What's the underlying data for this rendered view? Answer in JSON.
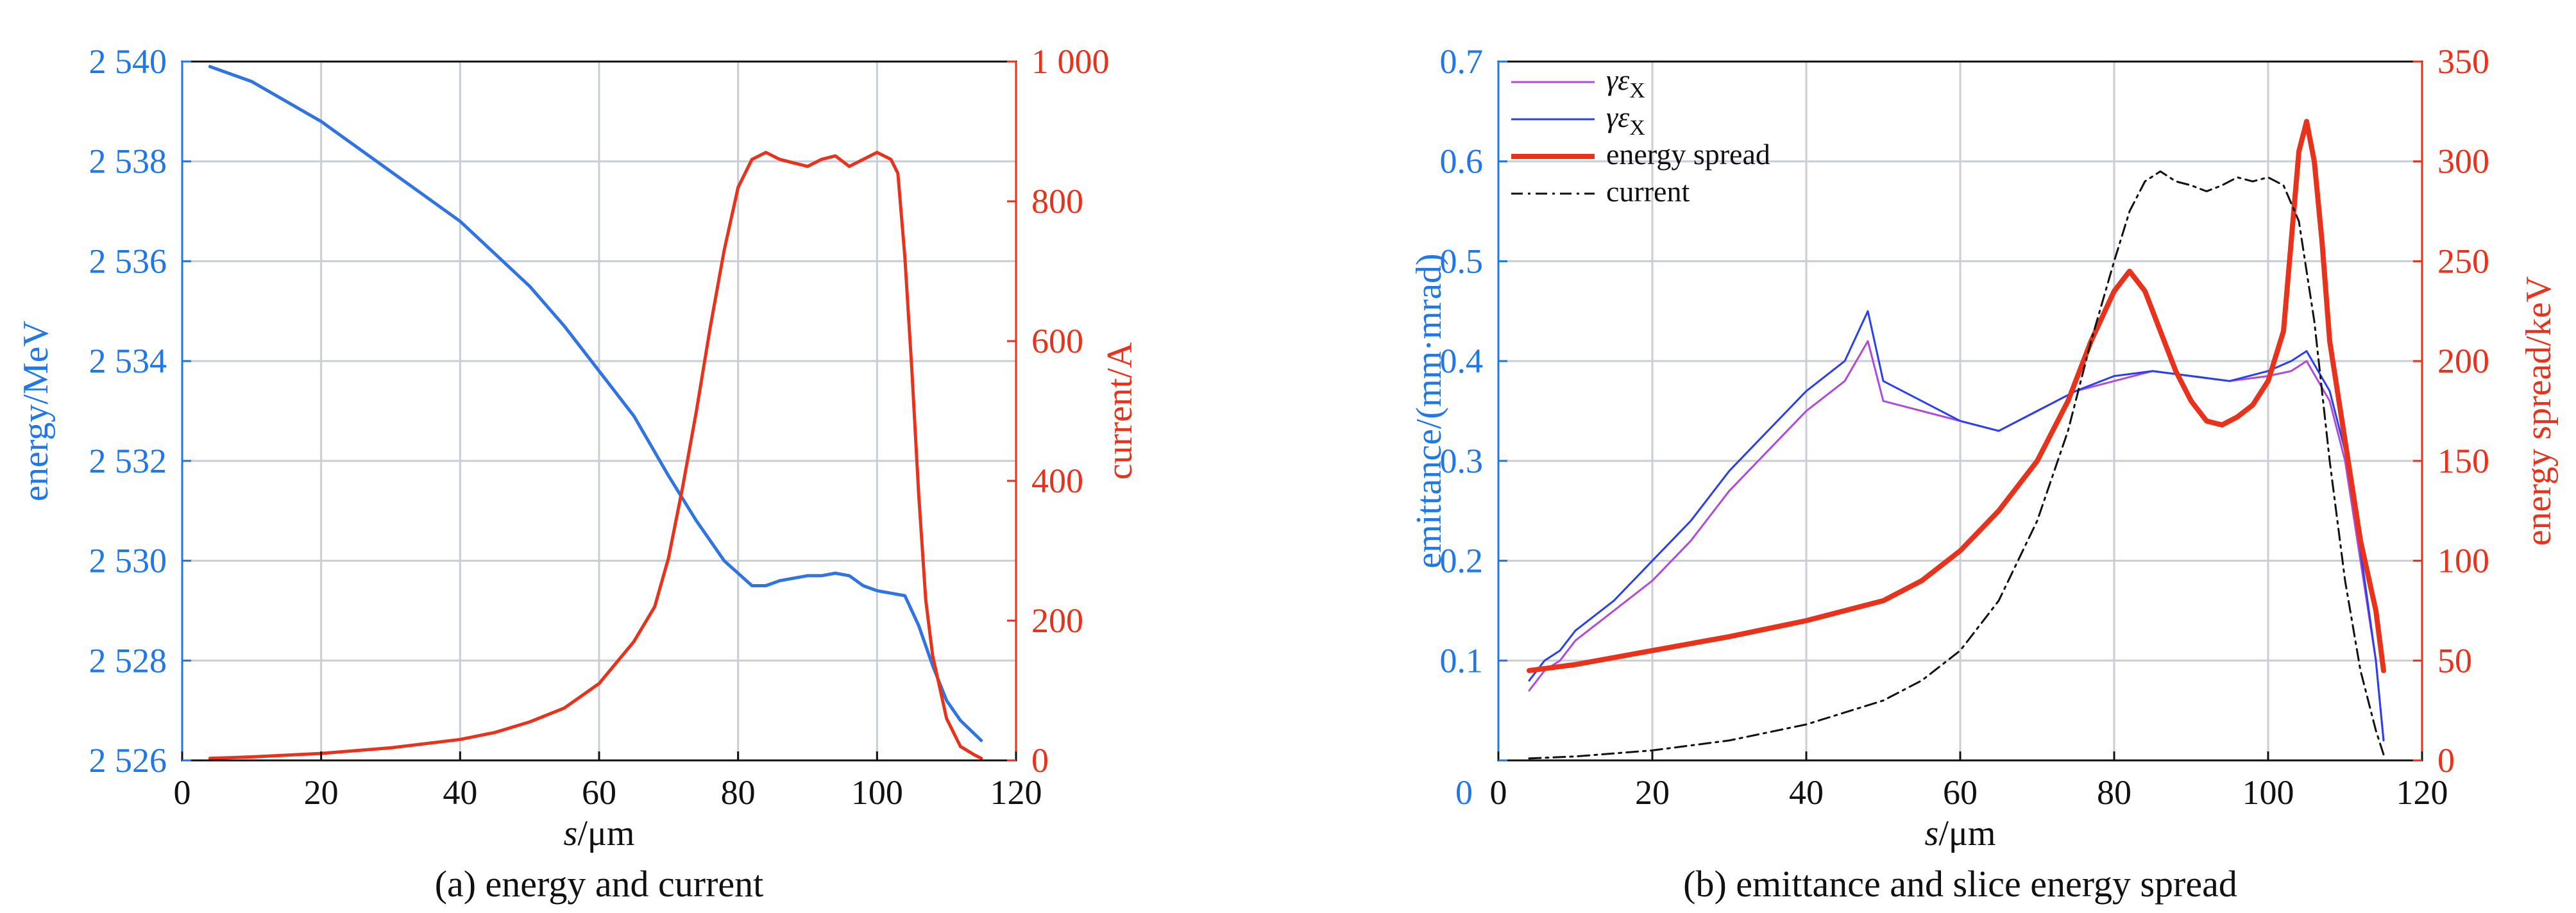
{
  "chart_data": [
    {
      "type": "line",
      "caption": "(a) energy and current",
      "xlabel_italic": "s",
      "xlabel_unit": "/μm",
      "xlim": [
        0,
        120
      ],
      "x_ticks": [
        "0",
        "20",
        "40",
        "60",
        "80",
        "100",
        "120"
      ],
      "y_left": {
        "label": "energy/MeV",
        "lim": [
          2526,
          2540
        ],
        "ticks": [
          "2 526",
          "2 528",
          "2 530",
          "2 532",
          "2 534",
          "2 536",
          "2 538",
          "2 540"
        ],
        "color": "#1f77e8"
      },
      "y_right": {
        "label": "current/A",
        "lim": [
          0,
          1000
        ],
        "ticks": [
          "0",
          "200",
          "400",
          "600",
          "800",
          "1 000"
        ],
        "color": "#e8321b"
      },
      "grid": true,
      "series": [
        {
          "axis": "left",
          "color": "#2f74e0",
          "x": [
            4,
            10,
            20,
            30,
            40,
            50,
            55,
            60,
            65,
            70,
            74,
            78,
            82,
            84,
            86,
            88,
            90,
            92,
            94,
            96,
            98,
            100,
            102,
            104,
            106,
            108,
            110,
            112,
            115
          ],
          "y": [
            2539.9,
            2539.6,
            2538.8,
            2537.8,
            2536.8,
            2535.5,
            2534.7,
            2533.8,
            2532.9,
            2531.7,
            2530.8,
            2530.0,
            2529.5,
            2529.5,
            2529.6,
            2529.65,
            2529.7,
            2529.7,
            2529.75,
            2529.7,
            2529.5,
            2529.4,
            2529.35,
            2529.3,
            2528.7,
            2527.9,
            2527.2,
            2526.8,
            2526.4
          ]
        },
        {
          "axis": "right",
          "color": "#e8321b",
          "x": [
            4,
            10,
            20,
            30,
            40,
            45,
            50,
            55,
            60,
            65,
            68,
            70,
            72,
            74,
            76,
            78,
            80,
            82,
            84,
            86,
            88,
            90,
            92,
            94,
            96,
            98,
            100,
            101,
            102,
            103,
            104,
            105,
            106,
            107,
            108,
            110,
            112,
            114,
            115
          ],
          "y": [
            3,
            5,
            10,
            18,
            30,
            40,
            55,
            75,
            110,
            170,
            220,
            290,
            390,
            500,
            620,
            730,
            820,
            860,
            870,
            860,
            855,
            850,
            860,
            865,
            850,
            860,
            870,
            865,
            860,
            840,
            720,
            560,
            380,
            230,
            150,
            60,
            20,
            8,
            3
          ]
        }
      ]
    },
    {
      "type": "line",
      "caption": "(b) emittance and slice energy spread",
      "xlabel_italic": "s",
      "xlabel_unit": "/μm",
      "xlim": [
        0,
        120
      ],
      "x_ticks": [
        "0",
        "20",
        "40",
        "60",
        "80",
        "100",
        "120"
      ],
      "y_left": {
        "label": "emittance/(mm·mrad)",
        "lim": [
          0,
          0.7
        ],
        "ticks": [
          "0",
          "0.1",
          "0.2",
          "0.3",
          "0.4",
          "0.5",
          "0.6",
          "0.7"
        ],
        "color": "#1f77e8"
      },
      "y_right": {
        "label": "energy spread/keV",
        "lim": [
          0,
          350
        ],
        "ticks": [
          "0",
          "50",
          "100",
          "150",
          "200",
          "250",
          "300",
          "350"
        ],
        "color": "#e8321b"
      },
      "grid": true,
      "legend": {
        "placement": "top-left",
        "entries": [
          {
            "label_base": "γε",
            "label_sub": "X",
            "color": "#b04ad8",
            "style": "thin"
          },
          {
            "label_base": "γε",
            "label_sub": "X",
            "color": "#2a3ff0",
            "style": "thin"
          },
          {
            "label": "energy spread",
            "color": "#e8321b",
            "style": "thick"
          },
          {
            "label": "current",
            "color": "#111111",
            "style": "dashdot"
          }
        ]
      },
      "series": [
        {
          "axis": "left",
          "color": "#b04ad8",
          "x": [
            4,
            6,
            8,
            10,
            15,
            20,
            25,
            30,
            35,
            40,
            45,
            48,
            50,
            55,
            60,
            65,
            70,
            75,
            80,
            85,
            90,
            95,
            100,
            103,
            105,
            108,
            110,
            112,
            114,
            115
          ],
          "y": [
            0.07,
            0.09,
            0.1,
            0.12,
            0.15,
            0.18,
            0.22,
            0.27,
            0.31,
            0.35,
            0.38,
            0.42,
            0.36,
            0.35,
            0.34,
            0.33,
            0.35,
            0.37,
            0.38,
            0.39,
            0.385,
            0.38,
            0.385,
            0.39,
            0.4,
            0.36,
            0.3,
            0.2,
            0.1,
            0.02
          ]
        },
        {
          "axis": "left",
          "color": "#2a3ff0",
          "x": [
            4,
            6,
            8,
            10,
            15,
            20,
            25,
            30,
            35,
            40,
            45,
            48,
            50,
            55,
            60,
            65,
            70,
            75,
            80,
            85,
            90,
            95,
            100,
            103,
            105,
            108,
            110,
            112,
            114,
            115
          ],
          "y": [
            0.08,
            0.1,
            0.11,
            0.13,
            0.16,
            0.2,
            0.24,
            0.29,
            0.33,
            0.37,
            0.4,
            0.45,
            0.38,
            0.36,
            0.34,
            0.33,
            0.35,
            0.37,
            0.385,
            0.39,
            0.385,
            0.38,
            0.39,
            0.4,
            0.41,
            0.37,
            0.31,
            0.21,
            0.1,
            0.02
          ]
        },
        {
          "axis": "right",
          "color": "#e8321b",
          "x": [
            4,
            10,
            20,
            30,
            40,
            50,
            55,
            60,
            65,
            70,
            74,
            77,
            80,
            82,
            84,
            86,
            88,
            90,
            92,
            94,
            96,
            98,
            100,
            102,
            103,
            104,
            105,
            106,
            107,
            108,
            110,
            112,
            114,
            115
          ],
          "y": [
            45,
            48,
            55,
            62,
            70,
            80,
            90,
            105,
            125,
            150,
            180,
            210,
            235,
            245,
            235,
            215,
            195,
            180,
            170,
            168,
            172,
            178,
            190,
            215,
            260,
            305,
            320,
            300,
            260,
            210,
            160,
            110,
            75,
            45
          ]
        },
        {
          "axis": "right",
          "color": "#111111",
          "dash": true,
          "x": [
            4,
            10,
            20,
            30,
            40,
            50,
            55,
            60,
            65,
            70,
            74,
            77,
            80,
            82,
            84,
            86,
            88,
            90,
            92,
            94,
            96,
            98,
            100,
            102,
            104,
            106,
            108,
            110,
            112,
            114,
            115
          ],
          "y": [
            1,
            2,
            5,
            10,
            18,
            30,
            40,
            55,
            80,
            120,
            165,
            210,
            250,
            275,
            290,
            295,
            290,
            288,
            285,
            288,
            292,
            290,
            292,
            288,
            270,
            220,
            150,
            90,
            45,
            15,
            3
          ]
        }
      ]
    }
  ]
}
